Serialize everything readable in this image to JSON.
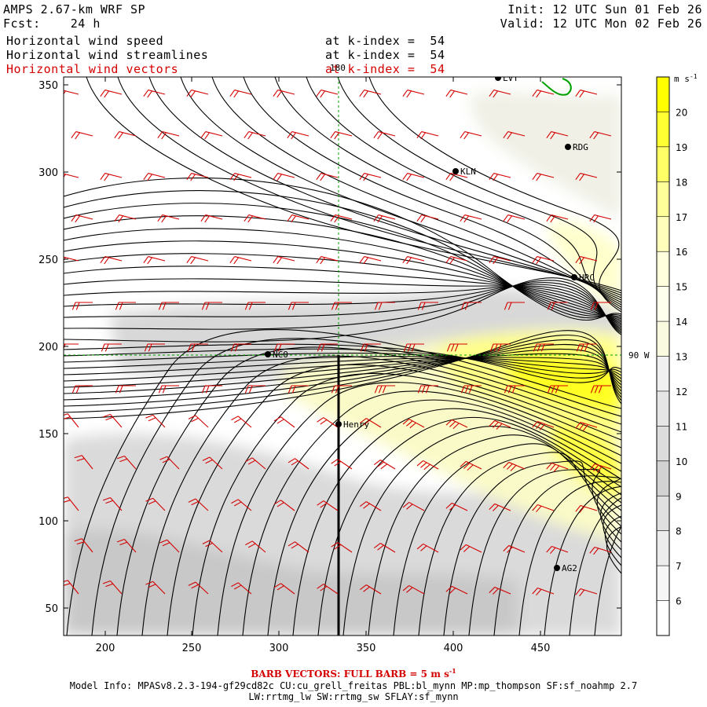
{
  "header": {
    "title": "AMPS 2.67-km WRF SP",
    "forecast": "Fcst:    24 h",
    "init": "Init: 12 UTC Sun 01 Feb 26",
    "valid": "Valid: 12 UTC Mon 02 Feb 26"
  },
  "fields": [
    {
      "name": "Horizontal wind speed",
      "level": "at k-index =  54",
      "color": "#000000"
    },
    {
      "name": "Horizontal wind streamlines",
      "level": "at k-index =  54",
      "color": "#000000"
    },
    {
      "name": "Horizontal wind vectors",
      "level": "at k-index =  54",
      "color": "#d40000"
    }
  ],
  "map": {
    "x_ticks": [
      "200",
      "250",
      "300",
      "350",
      "400",
      "450"
    ],
    "y_ticks": [
      "350",
      "300",
      "250",
      "200",
      "150",
      "100",
      "50"
    ],
    "meridian_label_top": "180",
    "meridian_label_right": "90 W",
    "stations": [
      {
        "id": "LVT",
        "label": "LVT"
      },
      {
        "id": "RDG",
        "label": "RDG"
      },
      {
        "id": "KLN",
        "label": "KLN"
      },
      {
        "id": "HRC",
        "label": "HRC"
      },
      {
        "id": "NCO",
        "label": "NCO"
      },
      {
        "id": "Henry",
        "label": "Henry"
      },
      {
        "id": "AG2",
        "label": "AG2"
      }
    ]
  },
  "colorbar": {
    "units": "m s",
    "units_exp": "-1",
    "labels": [
      "20",
      "19",
      "18",
      "17",
      "16",
      "15",
      "14",
      "13",
      "12",
      "11",
      "10",
      "9",
      "8",
      "7",
      "6"
    ],
    "colors": [
      "#ffff00",
      "#ffff33",
      "#ffff66",
      "#ffff99",
      "#ffffbb",
      "#ffffdd",
      "#ffffee",
      "#fafae0",
      "#f0f0f0",
      "#e6e6e6",
      "#dcdcdc",
      "#d2d2d2",
      "#e0e0e0",
      "#ececec",
      "#f6f6f6",
      "#ffffff"
    ]
  },
  "footer": {
    "barb_note": "BARB VECTORS:  FULL BARB = 5 m s",
    "barb_exp": "-1",
    "model_info": "Model Info: MPASv8.2.3-194-gf29cd82c CU:cu_grell_freitas PBL:bl_mynn MP:mp_thompson SF:sf_noahmp 2.7",
    "model_info_2": "LW:rrtmg_lw SW:rrtmg_sw SFLAY:sf_mynn"
  }
}
